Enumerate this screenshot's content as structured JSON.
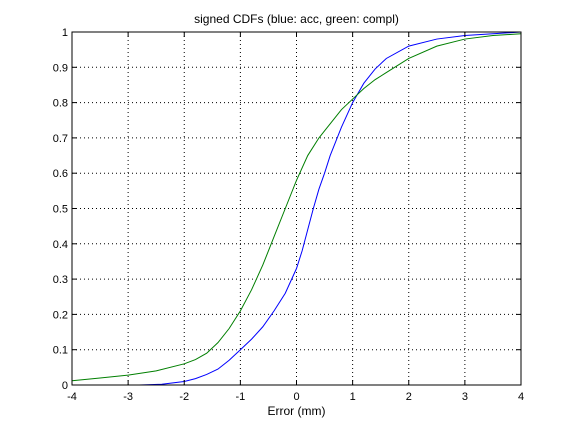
{
  "chart_data": {
    "type": "line",
    "title": "signed CDFs (blue: acc, green: compl)",
    "xlabel": "Error (mm)",
    "ylabel": "",
    "xlim": [
      -4,
      4
    ],
    "ylim": [
      0,
      1
    ],
    "xticks": [
      -4,
      -3,
      -2,
      -1,
      0,
      1,
      2,
      3,
      4
    ],
    "yticks": [
      0,
      0.1,
      0.2,
      0.3,
      0.4,
      0.5,
      0.6,
      0.7,
      0.8,
      0.9,
      1
    ],
    "xtick_labels": [
      "-4",
      "-3",
      "-2",
      "-1",
      "0",
      "1",
      "2",
      "3",
      "4"
    ],
    "ytick_labels": [
      "0",
      "0.1",
      "0.2",
      "0.3",
      "0.4",
      "0.5",
      "0.6",
      "0.7",
      "0.8",
      "0.9",
      "1"
    ],
    "grid": true,
    "series": [
      {
        "color": "#0000ff",
        "x": [
          -2.8,
          -2.4,
          -2.0,
          -1.8,
          -1.6,
          -1.4,
          -1.2,
          -1.0,
          -0.8,
          -0.6,
          -0.4,
          -0.2,
          0.0,
          0.1,
          0.2,
          0.3,
          0.4,
          0.5,
          0.6,
          0.8,
          1.0,
          1.2,
          1.4,
          1.6,
          2.0,
          2.5,
          3.0,
          3.5,
          4.0
        ],
        "y": [
          0.0,
          0.002,
          0.01,
          0.018,
          0.03,
          0.045,
          0.07,
          0.1,
          0.13,
          0.165,
          0.21,
          0.26,
          0.33,
          0.38,
          0.44,
          0.5,
          0.555,
          0.6,
          0.65,
          0.73,
          0.8,
          0.855,
          0.895,
          0.925,
          0.96,
          0.98,
          0.99,
          0.995,
          1.0
        ]
      },
      {
        "color": "#007f00",
        "x": [
          -4.0,
          -3.5,
          -3.0,
          -2.5,
          -2.0,
          -1.8,
          -1.6,
          -1.4,
          -1.2,
          -1.0,
          -0.8,
          -0.6,
          -0.4,
          -0.2,
          0.0,
          0.2,
          0.4,
          0.6,
          0.8,
          1.0,
          1.2,
          1.4,
          1.6,
          2.0,
          2.5,
          3.0,
          3.5,
          4.0
        ],
        "y": [
          0.012,
          0.02,
          0.028,
          0.04,
          0.06,
          0.072,
          0.09,
          0.12,
          0.16,
          0.21,
          0.27,
          0.34,
          0.42,
          0.5,
          0.58,
          0.65,
          0.7,
          0.74,
          0.78,
          0.81,
          0.84,
          0.865,
          0.885,
          0.925,
          0.96,
          0.98,
          0.99,
          0.995
        ]
      }
    ]
  }
}
